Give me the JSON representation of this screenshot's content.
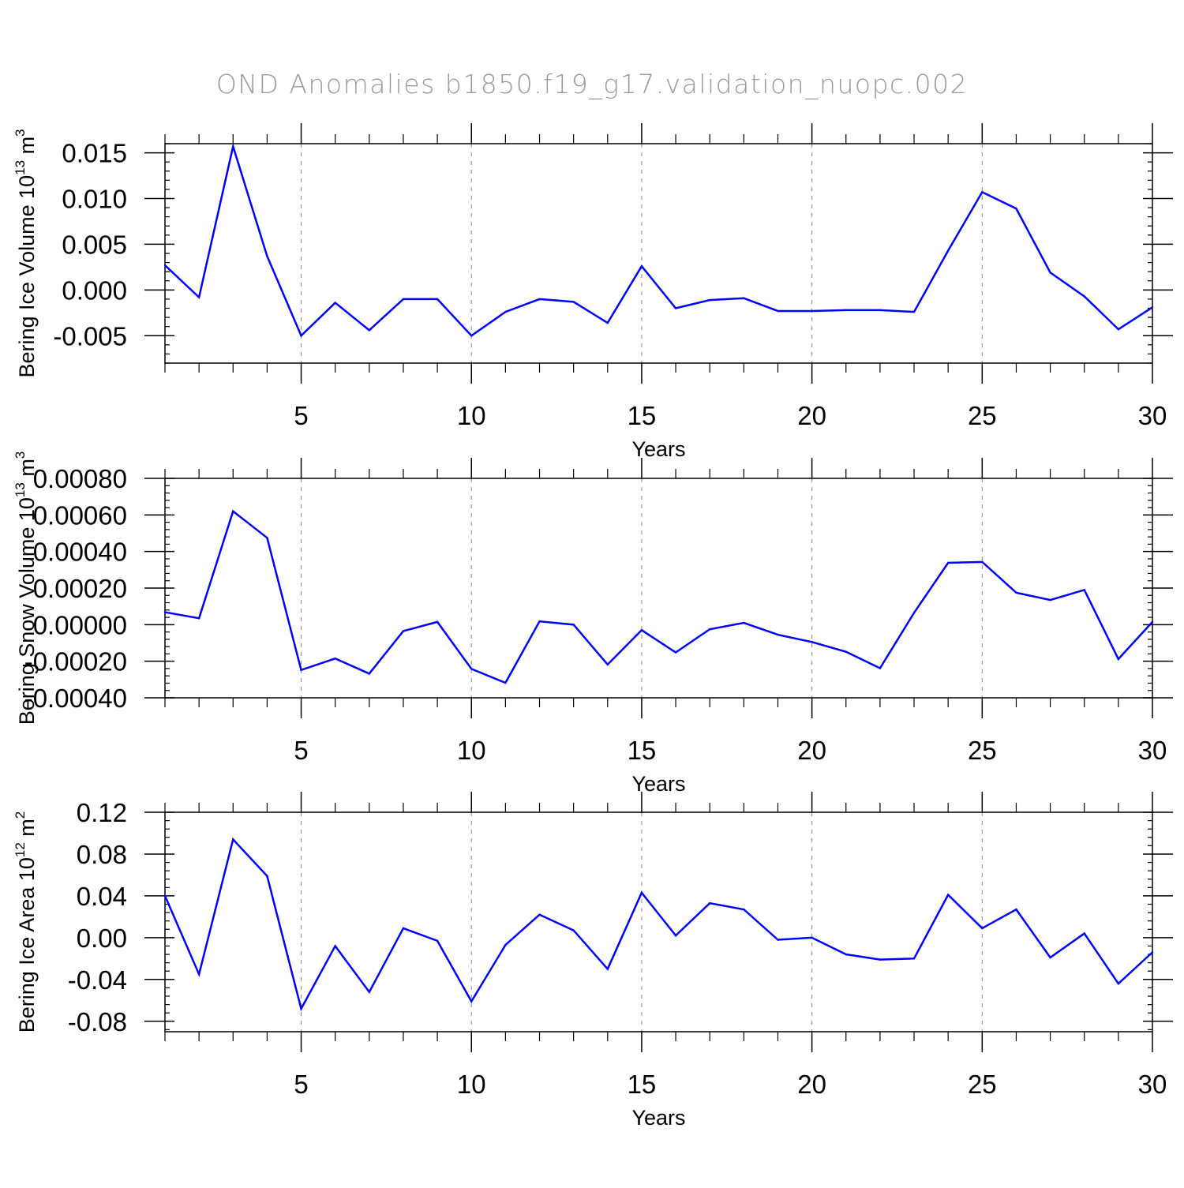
{
  "page": {
    "title": "OND Anomalies b1850.f19_g17.validation_nuopc.002"
  },
  "colors": {
    "series": "#0000ff",
    "axis": "#000000",
    "grid": "#888888",
    "title": "#9a9a9a",
    "background": "#ffffff"
  },
  "chart_data": [
    {
      "type": "line",
      "title": "OND Anomalies b1850.f19_g17.validation_nuopc.002",
      "ylabel": "Bering Ice Volume 10",
      "ylabel_sup": "13",
      "ylabel_unit": " m",
      "ylabel_unit_sup": "3",
      "xlabel": "Years",
      "xlim": [
        1,
        30
      ],
      "ylim": [
        -0.008,
        0.016
      ],
      "xticks": [
        5,
        10,
        15,
        20,
        25,
        30
      ],
      "xtick_labels": [
        "5",
        "10",
        "15",
        "20",
        "25",
        "30"
      ],
      "yticks": [
        -0.005,
        0.0,
        0.005,
        0.01,
        0.015
      ],
      "ytick_labels": [
        "-0.005",
        "0.000",
        "0.005",
        "0.010",
        "0.015"
      ],
      "grid": "vertical-dashed",
      "x": [
        1,
        2,
        3,
        4,
        5,
        6,
        7,
        8,
        9,
        10,
        11,
        12,
        13,
        14,
        15,
        16,
        17,
        18,
        19,
        20,
        21,
        22,
        23,
        24,
        25,
        26,
        27,
        28,
        29,
        30
      ],
      "series": [
        {
          "name": "Bering Ice Volume",
          "values": [
            0.0027,
            -0.0008,
            0.0157,
            0.0037,
            -0.005,
            -0.0014,
            -0.0044,
            -0.001,
            -0.001,
            -0.005,
            -0.0024,
            -0.001,
            -0.0013,
            -0.0036,
            0.0026,
            -0.002,
            -0.0011,
            -0.0009,
            -0.0023,
            -0.0023,
            -0.0022,
            -0.0022,
            -0.0024,
            0.0043,
            0.0107,
            0.0089,
            0.0019,
            -0.0007,
            -0.0043,
            -0.0019
          ]
        }
      ]
    },
    {
      "type": "line",
      "ylabel": "Bering Snow Volume 10",
      "ylabel_sup": "13",
      "ylabel_unit": " m",
      "ylabel_unit_sup": "3",
      "xlabel": "Years",
      "xlim": [
        1,
        30
      ],
      "ylim": [
        -0.0004,
        0.0008
      ],
      "xticks": [
        5,
        10,
        15,
        20,
        25,
        30
      ],
      "xtick_labels": [
        "5",
        "10",
        "15",
        "20",
        "25",
        "30"
      ],
      "yticks": [
        -0.0004,
        -0.0002,
        0.0,
        0.0002,
        0.0004,
        0.0006,
        0.0008
      ],
      "ytick_labels": [
        "-0.00040",
        "-0.00020",
        "0.00000",
        "0.00020",
        "0.00040",
        "0.00060",
        "0.00080"
      ],
      "grid": "vertical-dashed",
      "x": [
        1,
        2,
        3,
        4,
        5,
        6,
        7,
        8,
        9,
        10,
        11,
        12,
        13,
        14,
        15,
        16,
        17,
        18,
        19,
        20,
        21,
        22,
        23,
        24,
        25,
        26,
        27,
        28,
        29,
        30
      ],
      "series": [
        {
          "name": "Bering Snow Volume",
          "values": [
            6.8e-05,
            3.5e-05,
            0.00062,
            0.000475,
            -0.000248,
            -0.000185,
            -0.000268,
            -3.5e-05,
            1.5e-05,
            -0.000242,
            -0.000318,
            1.8e-05,
            0.0,
            -0.000218,
            -3e-05,
            -0.000152,
            -2.5e-05,
            1e-05,
            -5.5e-05,
            -9.5e-05,
            -0.000148,
            -0.000238,
            6.5e-05,
            0.000338,
            0.000343,
            0.000175,
            0.000135,
            0.00019,
            -0.000188,
            1.5e-05
          ]
        }
      ]
    },
    {
      "type": "line",
      "ylabel": "Bering Ice Area 10",
      "ylabel_sup": "12",
      "ylabel_unit": " m",
      "ylabel_unit_sup": "2",
      "xlabel": "Years",
      "xlim": [
        1,
        30
      ],
      "ylim": [
        -0.09,
        0.12
      ],
      "xticks": [
        5,
        10,
        15,
        20,
        25,
        30
      ],
      "xtick_labels": [
        "5",
        "10",
        "15",
        "20",
        "25",
        "30"
      ],
      "yticks": [
        -0.08,
        -0.04,
        0.0,
        0.04,
        0.08,
        0.12
      ],
      "ytick_labels": [
        "-0.08",
        "-0.04",
        "0.00",
        "0.04",
        "0.08",
        "0.12"
      ],
      "grid": "vertical-dashed",
      "x": [
        1,
        2,
        3,
        4,
        5,
        6,
        7,
        8,
        9,
        10,
        11,
        12,
        13,
        14,
        15,
        16,
        17,
        18,
        19,
        20,
        21,
        22,
        23,
        24,
        25,
        26,
        27,
        28,
        29,
        30
      ],
      "series": [
        {
          "name": "Bering Ice Area",
          "values": [
            0.04,
            -0.035,
            0.094,
            0.059,
            -0.068,
            -0.008,
            -0.052,
            0.009,
            -0.003,
            -0.061,
            -0.007,
            0.022,
            0.007,
            -0.03,
            0.043,
            0.002,
            0.033,
            0.027,
            -0.002,
            0.0,
            -0.016,
            -0.021,
            -0.02,
            0.041,
            0.009,
            0.027,
            -0.019,
            0.004,
            -0.044,
            -0.014
          ]
        }
      ]
    }
  ]
}
